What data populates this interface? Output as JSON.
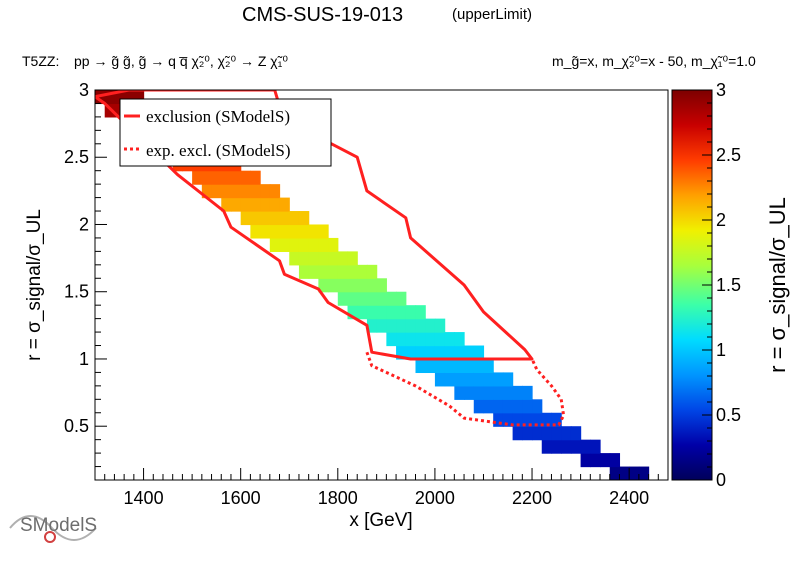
{
  "title": {
    "analysis": "CMS-SUS-19-013",
    "tag": "(upperLimit)"
  },
  "process": {
    "topology": "T5ZZ:",
    "reaction": "pp → g̃ g̃, g̃ → q q̅ χ̃₂⁰, χ̃₂⁰ → Z χ̃₁⁰"
  },
  "mass_condition": "m_g̃=x, m_χ̃₂⁰=x - 50, m_χ̃₁⁰=1.0",
  "logo_text": "SModelS",
  "colors": {
    "observed": "#ff2020",
    "expected": "#ff2020",
    "palette": [
      "#00005a",
      "#0000a8",
      "#0046e6",
      "#0096ff",
      "#00dcff",
      "#3cffa8",
      "#a8ff3c",
      "#f0f000",
      "#ffa000",
      "#ff3c00",
      "#c80000",
      "#7d0000"
    ]
  },
  "chart_data": {
    "type": "heatmap",
    "xlabel": "x [GeV]",
    "ylabel": "r = σ_signal/σ_UL",
    "zlabel": "r = σ_signal/σ_UL",
    "xlim": [
      1300,
      2480
    ],
    "ylim": [
      0.1,
      3.0
    ],
    "zlim": [
      0,
      3
    ],
    "x_ticks": [
      "1400",
      "1600",
      "1800",
      "2000",
      "2200",
      "2400"
    ],
    "y_ticks": [
      "0.5",
      "1",
      "1.5",
      "2",
      "2.5",
      "3"
    ],
    "z_ticks": [
      "0",
      "0.5",
      "1",
      "1.5",
      "2",
      "2.5",
      "3"
    ],
    "note": "y axis shows r itself; the color of each cell encodes r",
    "populated_band": {
      "x": [
        1300,
        1360,
        1460,
        1560,
        1660,
        1760,
        1860,
        1960,
        2060,
        2160,
        2260,
        2360,
        2440
      ],
      "r_min": [
        2.95,
        2.75,
        2.45,
        2.15,
        1.85,
        1.55,
        1.25,
        0.95,
        0.68,
        0.45,
        0.3,
        0.15,
        0.1
      ],
      "r_max": [
        3.0,
        3.0,
        2.85,
        2.6,
        2.3,
        2.0,
        1.7,
        1.4,
        1.15,
        0.85,
        0.55,
        0.3,
        0.15
      ]
    },
    "legend": {
      "position": "top-left",
      "entries": [
        {
          "label": "exclusion (SModelS)",
          "style": "solid"
        },
        {
          "label": "exp. excl. (SModelS)",
          "style": "dotted"
        }
      ]
    },
    "series": [
      {
        "name": "exclusion (SModelS)",
        "style": "solid",
        "x": [
          1300,
          1320,
          1470,
          1565,
          1580,
          1680,
          1690,
          1760,
          1780,
          1860,
          1870,
          1950,
          2200,
          2185,
          2100,
          2060,
          1950,
          1940,
          1860,
          1840,
          1760,
          1740,
          1680,
          1670,
          1590,
          1580,
          1370,
          1300
        ],
        "y": [
          2.95,
          2.9,
          2.37,
          2.1,
          1.98,
          1.73,
          1.63,
          1.52,
          1.42,
          1.25,
          1.05,
          1.0,
          1.0,
          1.07,
          1.35,
          1.55,
          1.9,
          2.05,
          2.25,
          2.5,
          2.65,
          2.8,
          2.88,
          3.0,
          3.0,
          3.0,
          3.0,
          2.95
        ]
      },
      {
        "name": "exp. excl. (SModelS)",
        "style": "dotted",
        "x": [
          1860,
          1870,
          1960,
          2030,
          2060,
          2160,
          2255,
          2265,
          2260,
          2240,
          2210,
          2200
        ],
        "y": [
          1.05,
          0.95,
          0.8,
          0.65,
          0.56,
          0.51,
          0.51,
          0.58,
          0.7,
          0.8,
          0.92,
          1.0
        ]
      }
    ]
  }
}
